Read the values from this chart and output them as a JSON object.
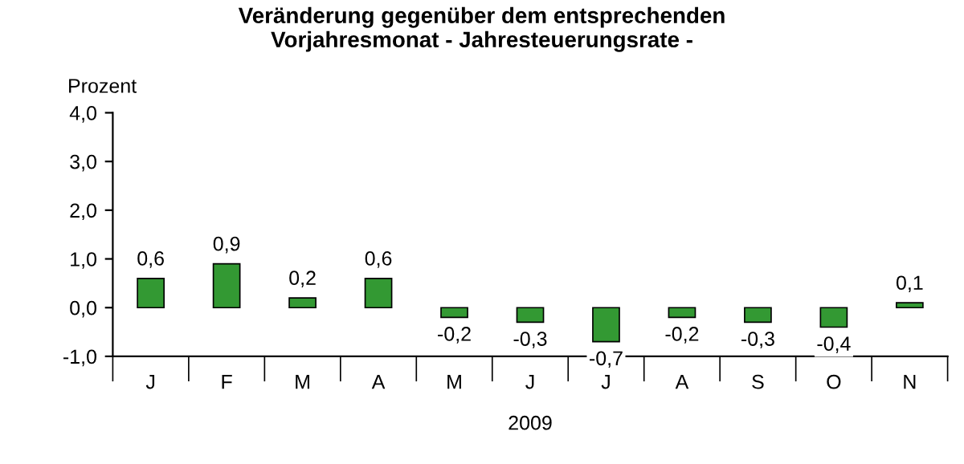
{
  "chart_data": {
    "type": "bar",
    "title": "Veränderung gegenüber dem entsprechenden\nVorjahresmonat - Jahresteuerungsrate -",
    "ylabel": "Prozent",
    "xlabel": "2009",
    "categories": [
      "J",
      "F",
      "M",
      "A",
      "M",
      "J",
      "J",
      "A",
      "S",
      "O",
      "N"
    ],
    "values": [
      0.6,
      0.9,
      0.2,
      0.6,
      -0.2,
      -0.3,
      -0.7,
      -0.2,
      -0.3,
      -0.4,
      0.1
    ],
    "value_labels": [
      "0,6",
      "0,9",
      "0,2",
      "0,6",
      "-0,2",
      "-0,3",
      "-0,7",
      "-0,2",
      "-0,3",
      "-0,4",
      "0,1"
    ],
    "color": "#339933",
    "ylim": [
      -1.0,
      4.0
    ],
    "yticks": [
      {
        "value": -1.0,
        "label": "-1,0"
      },
      {
        "value": 0.0,
        "label": "0,0"
      },
      {
        "value": 1.0,
        "label": "1,0"
      },
      {
        "value": 2.0,
        "label": "2,0"
      },
      {
        "value": 3.0,
        "label": "3,0"
      },
      {
        "value": 4.0,
        "label": "4,0"
      }
    ],
    "grid": false
  }
}
